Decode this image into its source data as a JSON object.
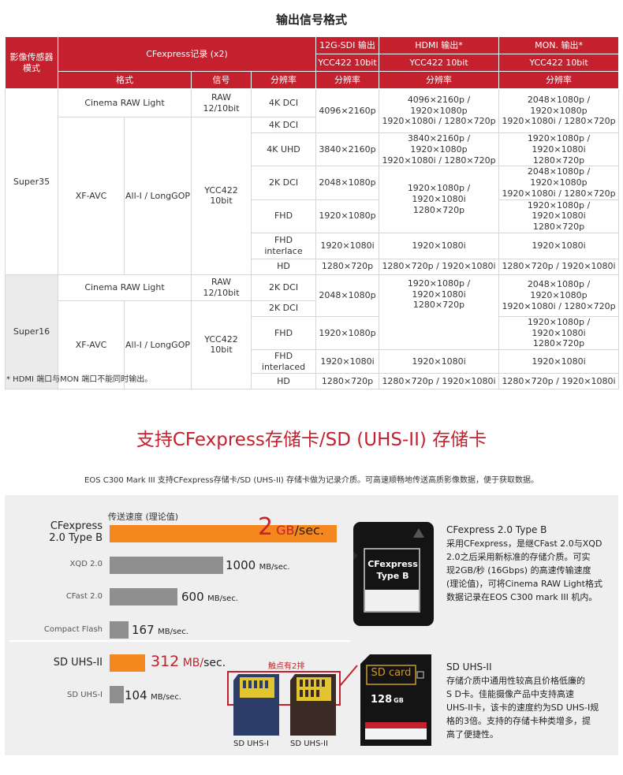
{
  "section1": {
    "title": "输出信号格式",
    "header": {
      "mode": "影像传感器模式",
      "cfexpress": "CFexpress记录 (x2)",
      "sdi_name": "12G-SDI 输出",
      "sdi_fmt": "YCC422 10bit",
      "hdmi_name": "HDMI 输出*",
      "hdmi_fmt": "YCC422 10bit",
      "mon_name": "MON. 输出*",
      "mon_fmt": "YCC422 10bit",
      "format": "格式",
      "signal": "信号",
      "resolution": "分辨率"
    },
    "s35": {
      "mode": "Super35",
      "raw_fmt": "Cinema RAW Light",
      "raw_sig": "RAW\n12/10bit",
      "xf_fmt": "XF-AVC",
      "xf_codec": "All-I / LongGOP",
      "xf_sig": "YCC422\n10bit",
      "r1": "4K DCI",
      "r2": "4K DCI",
      "r3": "4K UHD",
      "r4": "2K DCI",
      "r5": "FHD",
      "r6": "FHD\ninterlace",
      "r7": "HD",
      "sdi1": "4096×2160p",
      "sdi3": "3840×2160p",
      "sdi4": "2048×1080p",
      "sdi5": "1920×1080p",
      "sdi6": "1920×1080i",
      "sdi7": "1280×720p",
      "hdmi1": "4096×2160p / 1920×1080p\n1920×1080i / 1280×720p",
      "hdmi3": "3840×2160p / 1920×1080p\n1920×1080i / 1280×720p",
      "hdmi4": "1920×1080p / 1920×1080i\n1280×720p",
      "hdmi6": "1920×1080i",
      "hdmi7": "1280×720p / 1920×1080i",
      "mon1": "2048×1080p / 1920×1080p\n1920×1080i / 1280×720p",
      "mon3": "1920×1080p / 1920×1080i\n1280×720p",
      "mon4": "2048×1080p / 1920×1080p\n1920×1080i / 1280×720p",
      "mon5": "1920×1080p / 1920×1080i\n1280×720p",
      "mon6": "1920×1080i",
      "mon7": "1280×720p / 1920×1080i"
    },
    "s16": {
      "mode": "Super16",
      "raw_fmt": "Cinema RAW Light",
      "raw_sig": "RAW\n12/10bit",
      "xf_fmt": "XF-AVC",
      "xf_codec": "All-I / LongGOP",
      "xf_sig": "YCC422\n10bit",
      "r1": "2K DCI",
      "r2": "2K DCI",
      "r3": "FHD",
      "r4": "FHD\ninterlaced",
      "r5": "HD",
      "sdi1": "2048×1080p",
      "sdi3": "1920×1080p",
      "sdi4": "1920×1080i",
      "sdi5": "1280×720p",
      "hdmi1": "1920×1080p / 1920×1080i\n1280×720p",
      "hdmi4": "1920×1080i",
      "hdmi5": "1280×720p / 1920×1080i",
      "mon1": "2048×1080p / 1920×1080p\n1920×1080i / 1280×720p",
      "mon3": "1920×1080p / 1920×1080i\n1280×720p",
      "mon4": "1920×1080i",
      "mon5": "1280×720p / 1920×1080i"
    },
    "footnote": "* HDMI 端口与MON 端口不能同时输出。"
  },
  "section2": {
    "title": "支持CFexpress存储卡/SD (UHS-II) 存储卡",
    "intro": "EOS C300 Mark III 支持CFexpress存储卡/SD (UHS-II) 存储卡做为记录介质。可高速顺畅地传送高质影像数据，便于获取数据。",
    "speed_header": "传送速度 (理论值)",
    "bars": [
      {
        "label": "CFexpress\n2.0 Type B",
        "value": "2",
        "unit": "GB/sec.",
        "mbps": 2000
      },
      {
        "label": "XQD 2.0",
        "value": "1000",
        "unit": "MB/sec.",
        "mbps": 1000
      },
      {
        "label": "CFast 2.0",
        "value": "600",
        "unit": "MB/sec.",
        "mbps": 600
      },
      {
        "label": "Compact Flash",
        "value": "167",
        "unit": "MB/sec.",
        "mbps": 167
      },
      {
        "label": "SD UHS-II",
        "value": "312",
        "unit": "MB/",
        "unit2": "sec.",
        "mbps": 312
      },
      {
        "label": "SD UHS-I",
        "value": "104",
        "unit": "MB/sec.",
        "mbps": 104
      }
    ],
    "cfx_card_label": "CFexpress\nType B",
    "sd_card_label": "SD card",
    "sd_card_capacity": "128",
    "sd_card_small": "GB",
    "contacts_label": "触点有2排",
    "sd1_label": "SD UHS-I",
    "sd2_label": "SD UHS-II",
    "cfx_desc_title": "CFexpress 2.0 Type B",
    "cfx_desc": [
      "采用CFexpress，是继CFast 2.0与XQD",
      "2.0之后采用新标准的存储介质。可实",
      "现2GB/秒 (16Gbps) 的高速传输速度",
      "(理论值)，可将Cinema RAW Light格式",
      "数据记录在EOS C300 mark III 机内。"
    ],
    "sd_desc_title": "SD UHS-II",
    "sd_desc": [
      "存储介质中通用性较高且价格低廉的",
      "S D卡。佳能摄像产品中支持高速",
      "UHS-II卡，该卡的速度约为SD UHS-I规",
      "格的3倍。支持的存储卡种类增多，提",
      "高了便捷性。"
    ],
    "colors": {
      "accent": "#c4202d",
      "orange": "#f5871f",
      "bar": "#8f8f8f"
    }
  }
}
